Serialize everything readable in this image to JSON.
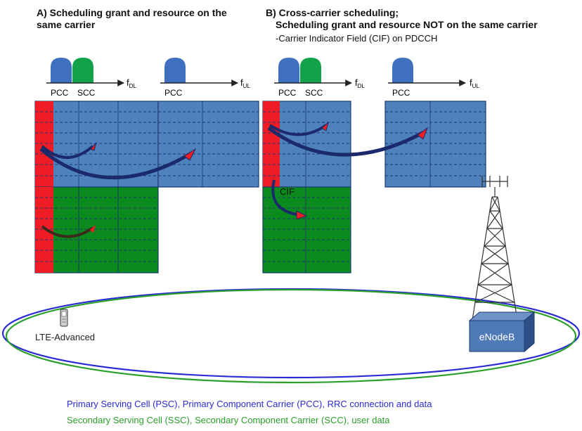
{
  "section_a": {
    "title_line1": "A) Scheduling grant and resource on the",
    "title_line2": "same carrier"
  },
  "section_b": {
    "title_line1": "B) Cross-carrier scheduling;",
    "title_line2": "Scheduling grant and resource NOT on the same carrier",
    "subtitle": "-Carrier Indicator Field (CIF) on PDCCH"
  },
  "labels": {
    "pcc": "PCC",
    "scc": "SCC",
    "f": "f",
    "dl": "DL",
    "ul": "UL",
    "cif": "CIF",
    "device": "LTE-Advanced",
    "enodeb": "eNodeB"
  },
  "legend": {
    "primary": "Primary Serving Cell (PSC), Primary Component Carrier (PCC), RRC connection and data",
    "secondary": "Secondary Serving Cell (SSC), Secondary Component Carrier (SCC), user data"
  },
  "colors": {
    "pcc_blue": "#3f6fbf",
    "scc_green": "#12a24a",
    "grid_blue": "#4f81bd",
    "grid_green": "#0b8a1e",
    "control_red": "#ee1c24",
    "arrow_navy": "#1b2a6b",
    "legend_blue": "#2b2bd6",
    "legend_green": "#2aa02a"
  }
}
